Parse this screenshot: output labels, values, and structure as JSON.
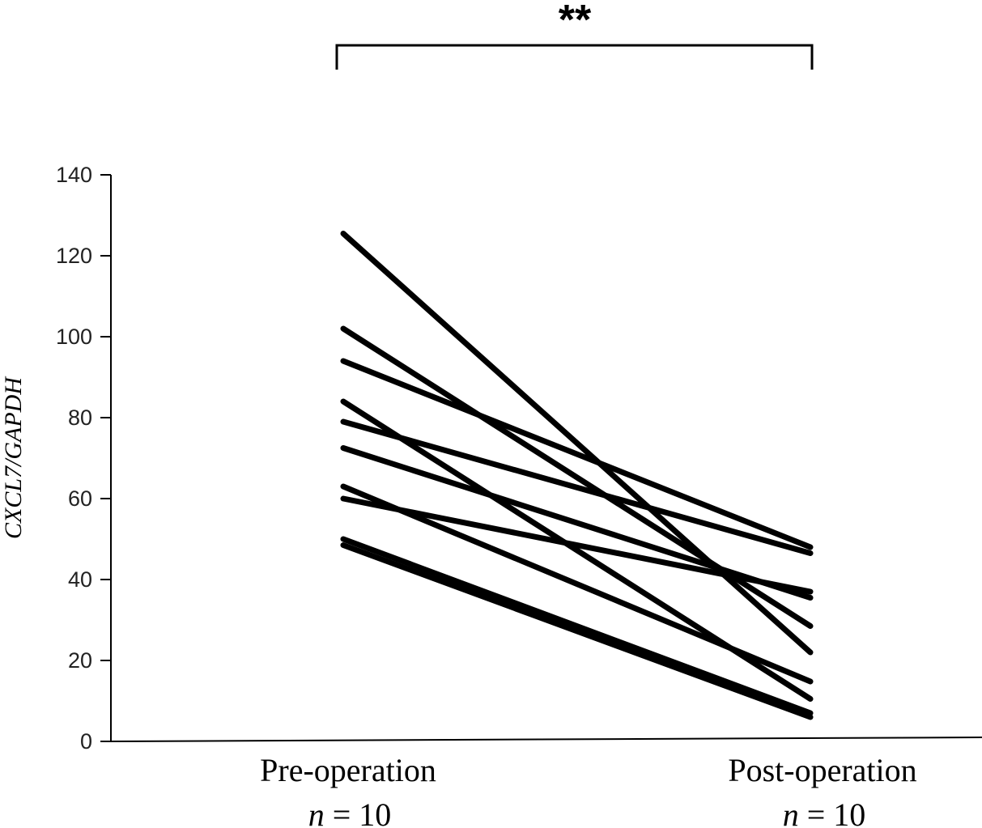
{
  "chart_data": {
    "type": "line",
    "title": "",
    "ylabel": "CXCL7/GAPDH",
    "xlabel": "",
    "ylim": [
      0,
      140
    ],
    "yticks": [
      0,
      20,
      40,
      60,
      80,
      100,
      120,
      140
    ],
    "categories": [
      "Pre-operation",
      "Post-operation"
    ],
    "group_sizes": [
      "n = 10",
      "n = 10"
    ],
    "grid": false,
    "legend": "none",
    "line_color": "#000000",
    "significance": {
      "label": "**",
      "between": [
        "Pre-operation",
        "Post-operation"
      ]
    },
    "series": [
      {
        "values": [
          125.5,
          22
        ]
      },
      {
        "values": [
          102,
          28.5
        ]
      },
      {
        "values": [
          94,
          48
        ]
      },
      {
        "values": [
          84,
          10.5
        ]
      },
      {
        "values": [
          79,
          46.5
        ]
      },
      {
        "values": [
          72.5,
          35.5
        ]
      },
      {
        "values": [
          63,
          14.8
        ]
      },
      {
        "values": [
          60,
          37
        ]
      },
      {
        "values": [
          50,
          7
        ]
      },
      {
        "values": [
          48.5,
          6
        ]
      }
    ]
  }
}
